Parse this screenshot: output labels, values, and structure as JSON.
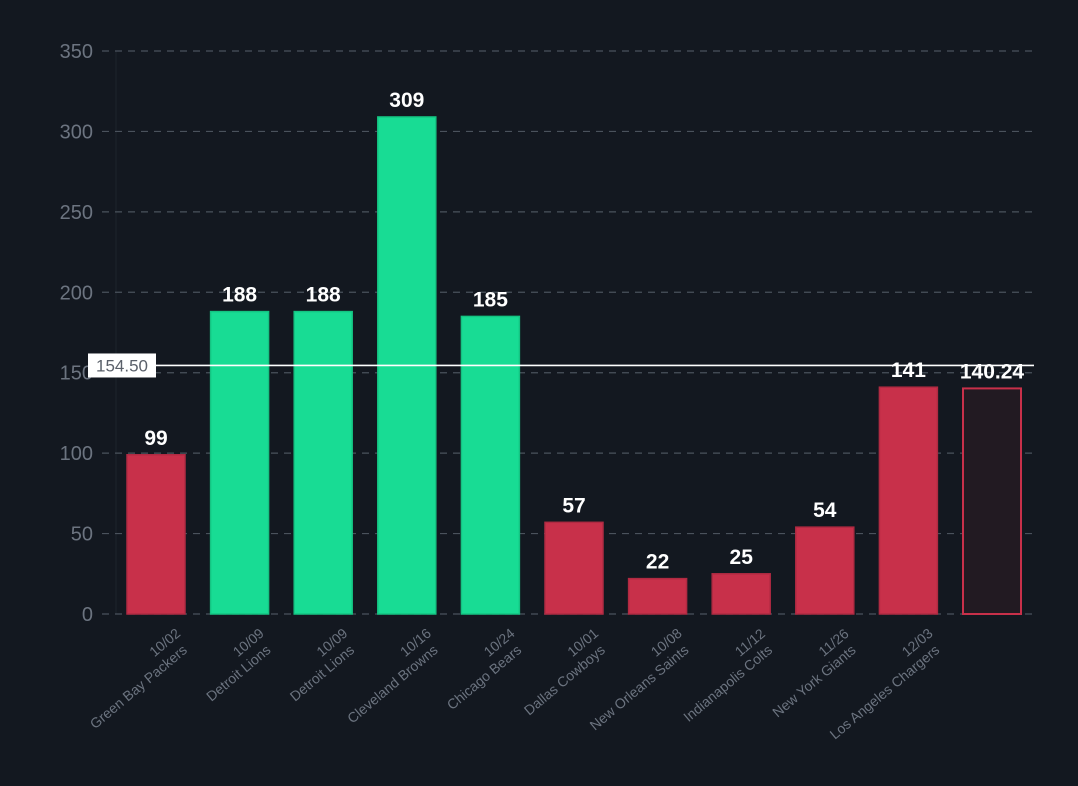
{
  "chart_data": {
    "type": "bar",
    "categories": [
      [
        "10/02",
        "Green Bay Packers"
      ],
      [
        "10/09",
        "Detroit Lions"
      ],
      [
        "10/09",
        "Detroit Lions"
      ],
      [
        "10/16",
        "Cleveland Browns"
      ],
      [
        "10/24",
        "Chicago Bears"
      ],
      [
        "10/01",
        "Dallas Cowboys"
      ],
      [
        "10/08",
        "New Orleans Saints"
      ],
      [
        "11/12",
        "Indianapolis Colts"
      ],
      [
        "11/26",
        "New York Giants"
      ],
      [
        "12/03",
        "Los Angeles Chargers"
      ],
      [
        "",
        ""
      ]
    ],
    "values": [
      99,
      188,
      188,
      309,
      185,
      57,
      22,
      25,
      54,
      141,
      140.24
    ],
    "value_labels": [
      "99",
      "188",
      "188",
      "309",
      "185",
      "57",
      "22",
      "25",
      "54",
      "141",
      "140.24"
    ],
    "bar_status": [
      "below",
      "above",
      "above",
      "above",
      "above",
      "below",
      "below",
      "below",
      "below",
      "below",
      "projection"
    ],
    "reference_line": {
      "value": 154.5,
      "label": "154.50"
    },
    "ylim": [
      0,
      350
    ],
    "yticks": [
      0,
      50,
      100,
      150,
      200,
      250,
      300,
      350
    ],
    "grid": true,
    "colors": {
      "above": "#18dc94",
      "below": "#c8304a",
      "projection_fill": "#221a22",
      "projection_stroke": "#c8304a",
      "reference_line": "#ffffff",
      "grid": "#4a525c",
      "background": "#131820"
    }
  }
}
